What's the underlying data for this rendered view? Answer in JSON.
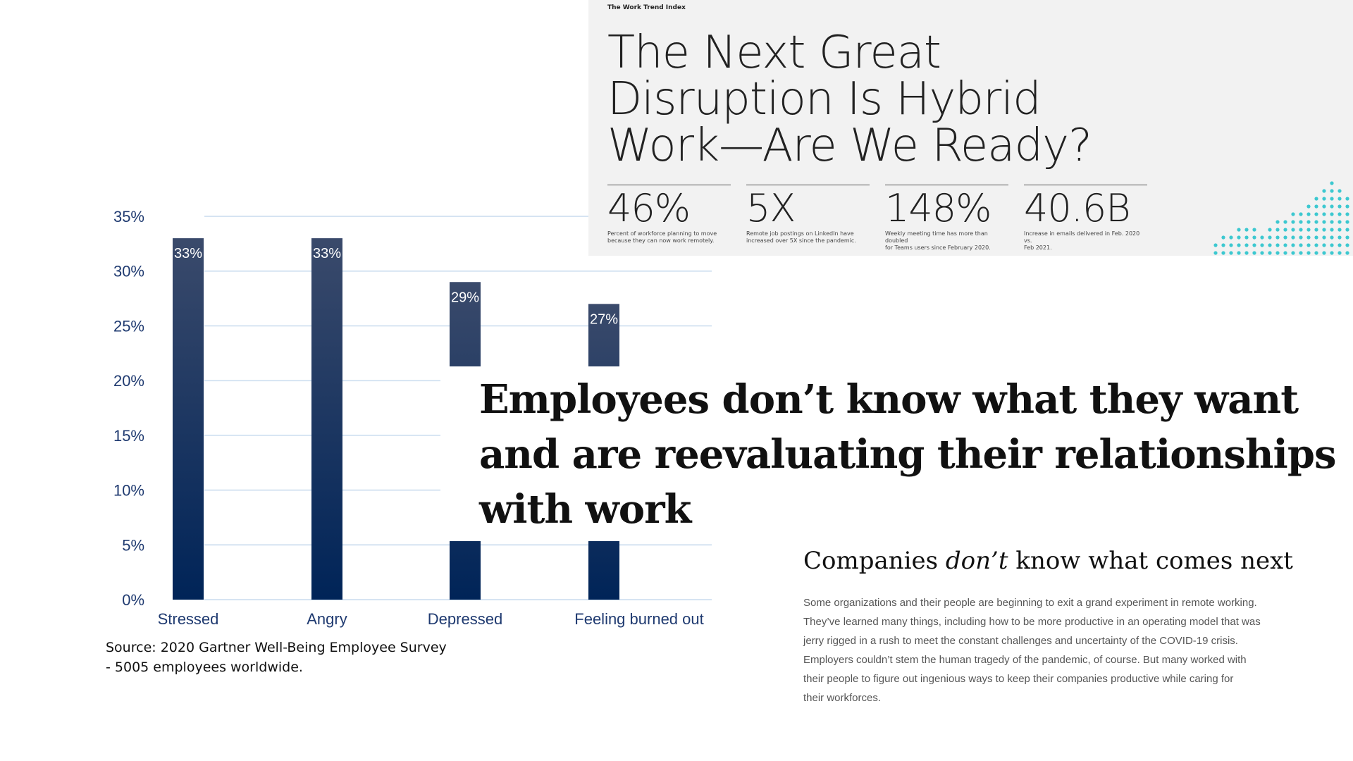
{
  "chart_data": {
    "type": "bar",
    "categories": [
      "Stressed",
      "Angry",
      "Depressed",
      "Feeling burned out"
    ],
    "values": [
      33,
      33,
      29,
      27
    ],
    "data_labels": [
      "33%",
      "33%",
      "29%",
      "27%"
    ],
    "ylim": [
      0,
      35
    ],
    "yticks": [
      "0%",
      "5%",
      "10%",
      "15%",
      "20%",
      "25%",
      "30%",
      "35%"
    ],
    "grid": true,
    "colors": {
      "bar_top": "#3a4a6b",
      "bar_bottom": "#002458",
      "grid": "#d6e4f2",
      "axis_text": "#1f3a70"
    }
  },
  "source_text": "Source: 2020 Gartner Well-Being Employee Survey\n - 5005  employees worldwide.",
  "trend_panel": {
    "tag": "The Work Trend Index",
    "title_lines": [
      "The Next Great",
      "Disruption Is Hybrid",
      "Work—Are We Ready?"
    ],
    "stats": [
      {
        "value": "46%",
        "desc": [
          "Percent of workforce planning to move",
          "because they can now work remotely."
        ]
      },
      {
        "value": "5X",
        "desc": [
          "Remote job postings on LinkedIn have",
          "increased over 5X since the pandemic."
        ]
      },
      {
        "value": "148%",
        "desc": [
          "Weekly meeting time has more than doubled",
          "for Teams users since February 2020."
        ]
      },
      {
        "value": "40.6B",
        "desc": [
          "Increase in emails delivered in Feb. 2020 vs.",
          "Feb 2021."
        ]
      }
    ],
    "dot_color": "#3cc8d0"
  },
  "headline_lines": [
    "Employees don’t know what they want",
    "and are reevaluating their relationships",
    "with work"
  ],
  "companies": {
    "title_before": "Companies ",
    "title_em": "don’t",
    "title_after": " know what comes next",
    "body_lines": [
      "Some organizations and their people are beginning to exit a grand experiment in remote working.",
      "They’ve learned many things, including how to be more productive in an operating model that was",
      "jerry rigged in a rush to meet the constant challenges and uncertainty of the COVID-19 crisis.",
      "Employers couldn’t stem the human tragedy of the pandemic, of course. But many worked with",
      "their people to figure out ingenious ways to keep their companies productive while caring for",
      "their workforces."
    ]
  }
}
